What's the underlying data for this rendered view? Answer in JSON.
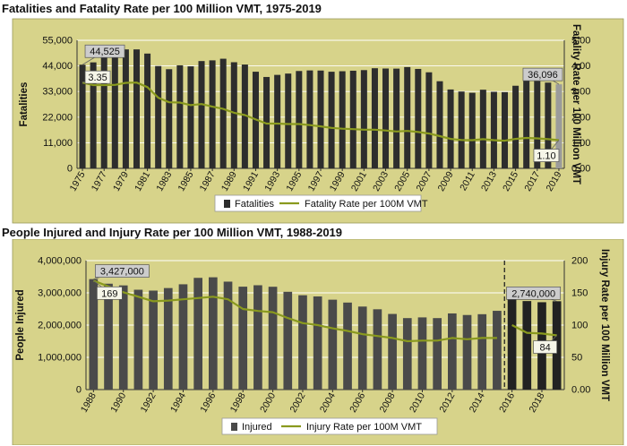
{
  "chart_data": [
    {
      "type": "bar",
      "title": "Fatalities and Fatality Rate per 100 Million VMT, 1975-2019",
      "ylabel": "Fatalities",
      "y2label": "Fatality Rate per 100 Million VMT",
      "ylim": [
        0,
        55000
      ],
      "y2lim": [
        0,
        5.0
      ],
      "yticks": [
        "0",
        "11,000",
        "22,000",
        "33,000",
        "44,000",
        "55,000"
      ],
      "y2ticks": [
        "0.00",
        "1.00",
        "2.00",
        "3.00",
        "4.00",
        "5.00"
      ],
      "xticks": [
        "1975",
        "1977",
        "1979",
        "1981",
        "1983",
        "1985",
        "1987",
        "1989",
        "1991",
        "1993",
        "1995",
        "1997",
        "1999",
        "2001",
        "2003",
        "2005",
        "2007",
        "2009",
        "2011",
        "2013",
        "2015",
        "2017",
        "2019"
      ],
      "x": [
        1975,
        1976,
        1977,
        1978,
        1979,
        1980,
        1981,
        1982,
        1983,
        1984,
        1985,
        1986,
        1987,
        1988,
        1989,
        1990,
        1991,
        1992,
        1993,
        1994,
        1995,
        1996,
        1997,
        1998,
        1999,
        2000,
        2001,
        2002,
        2003,
        2004,
        2005,
        2006,
        2007,
        2008,
        2009,
        2010,
        2011,
        2012,
        2013,
        2014,
        2015,
        2016,
        2017,
        2018,
        2019
      ],
      "series": [
        {
          "name": "Fatalities",
          "kind": "bar",
          "color": "#2d2d2d",
          "values": [
            44525,
            45523,
            47878,
            50331,
            51093,
            51091,
            49301,
            43945,
            42589,
            44257,
            43825,
            46087,
            46390,
            47087,
            45582,
            44599,
            41508,
            39250,
            40150,
            40716,
            41817,
            42065,
            42013,
            41501,
            41717,
            41945,
            42196,
            43005,
            42884,
            42836,
            43510,
            42708,
            41259,
            37423,
            33883,
            32999,
            32479,
            33782,
            32893,
            32744,
            35484,
            37806,
            37473,
            36835,
            36096
          ],
          "highlight_color": "#9b9b9b"
        },
        {
          "name": "Fatality Rate per 100M VMT",
          "kind": "line",
          "color": "#8a9a1e",
          "values": [
            3.35,
            3.25,
            3.25,
            3.26,
            3.34,
            3.35,
            3.17,
            2.76,
            2.58,
            2.57,
            2.47,
            2.51,
            2.41,
            2.32,
            2.17,
            2.08,
            1.91,
            1.75,
            1.75,
            1.73,
            1.73,
            1.69,
            1.64,
            1.58,
            1.55,
            1.53,
            1.51,
            1.51,
            1.48,
            1.44,
            1.46,
            1.42,
            1.36,
            1.26,
            1.15,
            1.11,
            1.1,
            1.14,
            1.1,
            1.08,
            1.15,
            1.19,
            1.17,
            1.14,
            1.1
          ]
        }
      ],
      "callouts": [
        {
          "text": "44,525"
        },
        {
          "text": "3.35"
        },
        {
          "text": "36,096"
        },
        {
          "text": "1.10"
        }
      ],
      "legend": [
        "Fatalities",
        "Fatality Rate per 100M VMT"
      ],
      "legend_position": "bottom",
      "plot_background": "#d7d38a",
      "grid": true
    },
    {
      "type": "bar",
      "title": "People Injured and Injury Rate per 100 Million VMT, 1988-2019",
      "ylabel": "People Injured",
      "y2label": "Injury Rate per 100 Million VMT",
      "ylim": [
        0,
        4000000
      ],
      "y2lim": [
        0,
        200
      ],
      "yticks": [
        "0",
        "1,000,000",
        "2,000,000",
        "3,000,000",
        "4,000,000"
      ],
      "y2ticks": [
        "0.00",
        "50",
        "100",
        "150",
        "200"
      ],
      "xticks": [
        "1988",
        "1990",
        "1992",
        "1994",
        "1996",
        "1998",
        "2000",
        "2002",
        "2004",
        "2006",
        "2008",
        "2010",
        "2012",
        "2014",
        "2016",
        "2018"
      ],
      "x": [
        1988,
        1989,
        1990,
        1991,
        1992,
        1993,
        1994,
        1995,
        1996,
        1997,
        1998,
        1999,
        2000,
        2001,
        2002,
        2003,
        2004,
        2005,
        2006,
        2007,
        2008,
        2009,
        2010,
        2011,
        2012,
        2013,
        2014,
        2015,
        2016,
        2017,
        2018,
        2019
      ],
      "series": [
        {
          "name": "Injured",
          "kind": "bar",
          "color": "#4a4a4a",
          "color_after_break": "#222222",
          "values": [
            3427000,
            3284000,
            3231000,
            3097000,
            3070000,
            3149000,
            3266000,
            3465000,
            3483000,
            3348000,
            3192000,
            3236000,
            3189000,
            3033000,
            2926000,
            2889000,
            2788000,
            2699000,
            2575000,
            2491000,
            2346000,
            2217000,
            2239000,
            2217000,
            2362000,
            2313000,
            2338000,
            2443000,
            3062000,
            2746000,
            2710000,
            2740000
          ]
        },
        {
          "name": "Injury Rate per 100M VMT",
          "kind": "line",
          "color": "#8a9a1e",
          "values": [
            169,
            160,
            151,
            144,
            137,
            138,
            140,
            142,
            144,
            140,
            125,
            122,
            120,
            111,
            103,
            100,
            95,
            91,
            86,
            83,
            80,
            75,
            76,
            76,
            80,
            78,
            80,
            80,
            100,
            88,
            87,
            84
          ],
          "break_after": 2015
        }
      ],
      "break_marker_after": 2015,
      "callouts": [
        {
          "text": "3,427,000"
        },
        {
          "text": "169"
        },
        {
          "text": "2,740,000"
        },
        {
          "text": "84"
        }
      ],
      "legend": [
        "Injured",
        "Injury Rate per 100M VMT"
      ],
      "legend_position": "bottom",
      "plot_background": "#d7d38a",
      "grid": true
    }
  ]
}
